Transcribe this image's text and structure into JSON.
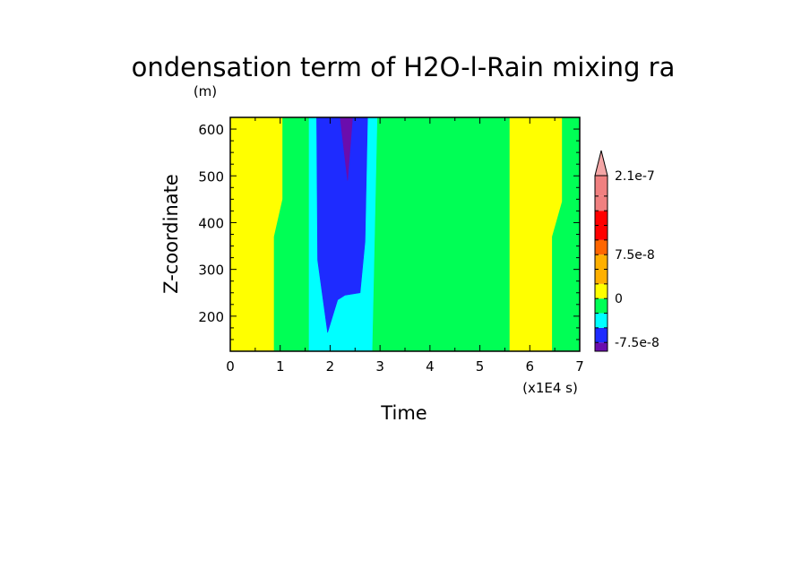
{
  "chart_data": {
    "type": "heatmap",
    "title": "ondensation term of H2O-l-Rain mixing ra",
    "xlabel": "Time",
    "xunit": "(x1E4 s)",
    "ylabel": "Z-coordinate",
    "yunit": "(m)",
    "xlim": [
      0,
      7
    ],
    "ylim": [
      125,
      625
    ],
    "xticks": [
      0,
      1,
      2,
      3,
      4,
      5,
      6,
      7
    ],
    "xtick_labels": [
      "0",
      "1",
      "2",
      "3",
      "4",
      "5",
      "6",
      "7"
    ],
    "yticks": [
      200,
      300,
      400,
      500,
      600
    ],
    "ytick_labels": [
      "200",
      "300",
      "400",
      "500",
      "600"
    ],
    "colorbar": {
      "colors": [
        "#6a0dad",
        "#1e2bff",
        "#00ffff",
        "#00ff55",
        "#ffff00",
        "#ffb000",
        "#ff6600",
        "#ff0000",
        "#f08080"
      ],
      "tick_labels": [
        "-7.5e-8",
        "0",
        "7.5e-8",
        "2.1e-7"
      ],
      "tick_levels": [
        -75,
        0,
        75,
        210
      ],
      "levels": [
        -90,
        -75,
        -50,
        -25,
        0,
        25,
        50,
        75,
        100,
        125,
        150,
        175,
        210
      ],
      "extend": "max",
      "extend_color": "#f4a6a6"
    },
    "regions": [
      {
        "level": "positive-low",
        "color": "#ffff00",
        "polygon": [
          [
            0,
            125
          ],
          [
            0,
            625
          ],
          [
            1.05,
            625
          ],
          [
            1.05,
            450
          ],
          [
            0.88,
            370
          ],
          [
            0.88,
            125
          ]
        ]
      },
      {
        "level": "near-zero",
        "color": "#00ff55",
        "polygon": [
          [
            0.88,
            125
          ],
          [
            0.88,
            370
          ],
          [
            1.05,
            450
          ],
          [
            1.05,
            625
          ],
          [
            1.58,
            625
          ],
          [
            1.58,
            125
          ]
        ]
      },
      {
        "level": "negative-small",
        "color": "#00ffff",
        "polygon": [
          [
            1.58,
            125
          ],
          [
            1.58,
            625
          ],
          [
            2.95,
            625
          ],
          [
            2.85,
            125
          ]
        ]
      },
      {
        "level": "negative",
        "color": "#1e2bff",
        "polygon": [
          [
            1.73,
            625
          ],
          [
            1.75,
            320
          ],
          [
            1.95,
            165
          ],
          [
            2.15,
            235
          ],
          [
            2.3,
            245
          ],
          [
            2.6,
            250
          ],
          [
            2.7,
            360
          ],
          [
            2.75,
            625
          ]
        ]
      },
      {
        "level": "negative-min",
        "color": "#6a0dad",
        "polygon": [
          [
            2.2,
            625
          ],
          [
            2.35,
            490
          ],
          [
            2.45,
            625
          ]
        ]
      },
      {
        "level": "near-zero",
        "color": "#00ff55",
        "polygon": [
          [
            2.85,
            125
          ],
          [
            2.95,
            625
          ],
          [
            5.6,
            625
          ],
          [
            5.6,
            125
          ]
        ]
      },
      {
        "level": "positive-low",
        "color": "#ffff00",
        "polygon": [
          [
            5.6,
            125
          ],
          [
            5.6,
            625
          ],
          [
            6.65,
            625
          ],
          [
            6.65,
            445
          ],
          [
            6.45,
            370
          ],
          [
            6.45,
            125
          ]
        ]
      },
      {
        "level": "near-zero",
        "color": "#00ff55",
        "polygon": [
          [
            6.45,
            125
          ],
          [
            6.45,
            370
          ],
          [
            6.65,
            445
          ],
          [
            6.65,
            625
          ],
          [
            7,
            625
          ],
          [
            7,
            125
          ]
        ]
      }
    ]
  }
}
